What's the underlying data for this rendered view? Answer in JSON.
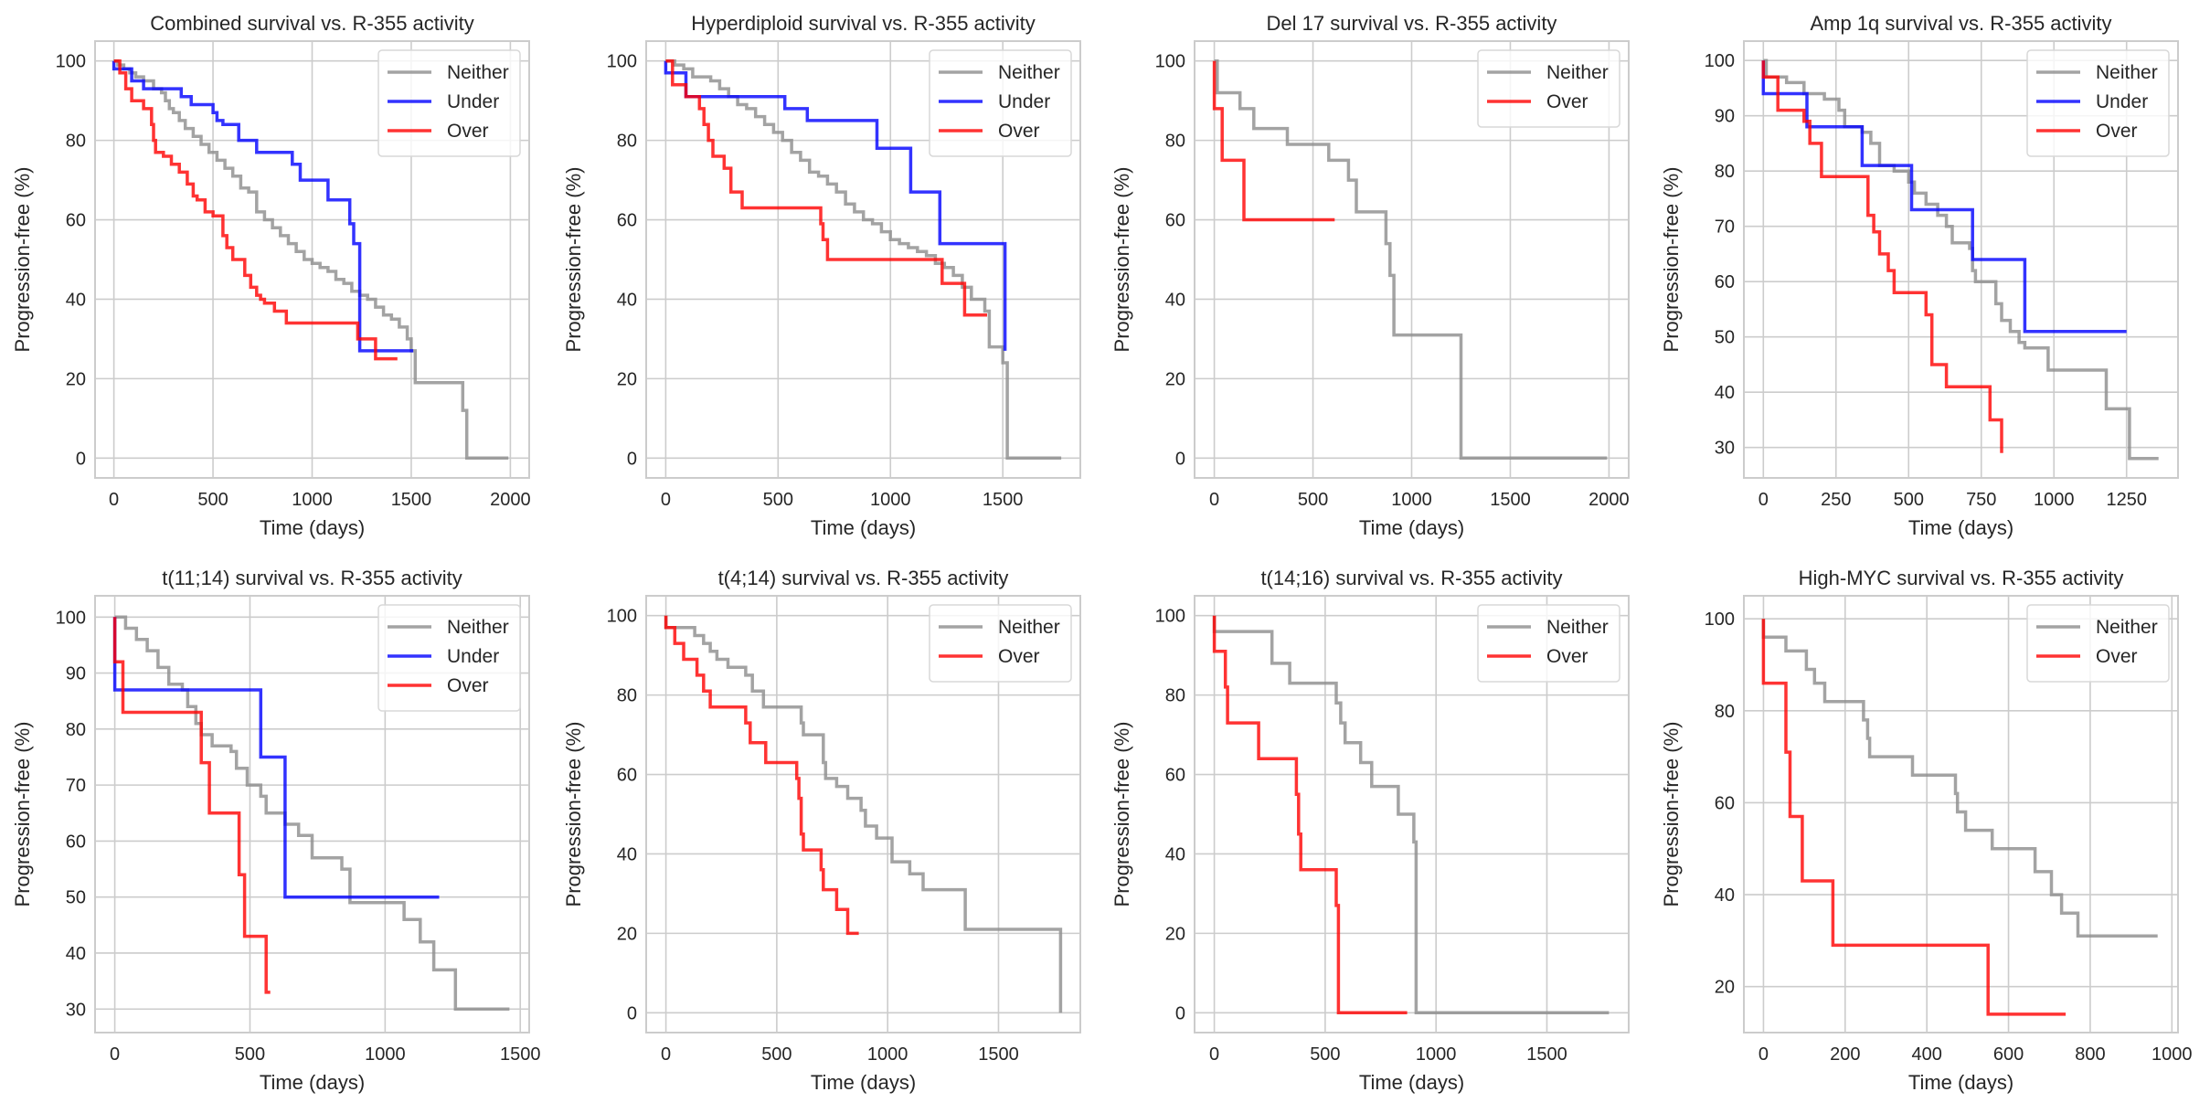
{
  "colors": {
    "Neither": "#8c8c8c",
    "Under": "#0000ff",
    "Over": "#ff0000",
    "grid": "#cccccc",
    "frame": "#cccccc"
  },
  "chart_data": [
    {
      "type": "line",
      "title": "Combined survival vs. R-355 activity",
      "xlabel": "Time (days)",
      "ylabel": "Progression-free (%)",
      "xlim": [
        -95,
        2095
      ],
      "ylim": [
        -5,
        105
      ],
      "xticks": [
        0,
        500,
        1000,
        1500,
        2000
      ],
      "yticks": [
        0,
        20,
        40,
        60,
        80,
        100
      ],
      "grid": true,
      "legend": "top-right",
      "series": [
        {
          "name": "Neither",
          "x": [
            0,
            20,
            50,
            80,
            110,
            150,
            200,
            240,
            260,
            280,
            300,
            330,
            360,
            400,
            440,
            480,
            520,
            560,
            600,
            640,
            680,
            720,
            760,
            800,
            840,
            880,
            920,
            960,
            1000,
            1040,
            1080,
            1120,
            1160,
            1200,
            1240,
            1280,
            1320,
            1360,
            1400,
            1440,
            1480,
            1500,
            1520,
            1760,
            1780,
            1990
          ],
          "y": [
            100,
            99,
            98,
            97,
            96,
            95,
            93,
            92,
            90,
            88,
            87,
            85,
            83,
            81,
            79,
            77,
            75,
            73,
            71,
            68,
            67,
            62,
            60,
            58,
            56,
            54,
            52,
            50,
            49,
            48,
            47,
            45,
            44,
            42,
            41,
            40,
            38,
            36,
            35,
            33,
            30,
            27,
            19,
            12,
            0,
            0
          ]
        },
        {
          "name": "Under",
          "x": [
            0,
            90,
            150,
            340,
            390,
            500,
            520,
            550,
            630,
            720,
            900,
            940,
            1080,
            1190,
            1210,
            1240,
            1510
          ],
          "y": [
            98,
            95,
            93,
            91,
            89,
            87,
            85,
            84,
            80,
            77,
            74,
            70,
            65,
            59,
            54,
            27,
            27
          ]
        },
        {
          "name": "Over",
          "x": [
            0,
            30,
            60,
            90,
            150,
            190,
            200,
            210,
            250,
            290,
            330,
            370,
            400,
            420,
            460,
            500,
            550,
            570,
            600,
            620,
            660,
            690,
            720,
            740,
            760,
            810,
            870,
            1230,
            1320,
            1430
          ],
          "y": [
            100,
            97,
            93,
            90,
            88,
            84,
            80,
            77,
            76,
            74,
            72,
            69,
            66,
            65,
            62,
            61,
            56,
            53,
            50,
            50,
            46,
            43,
            41,
            40,
            39,
            37,
            34,
            30,
            25,
            25
          ]
        }
      ]
    },
    {
      "type": "line",
      "title": "Hyperdiploid survival vs. R-355 activity",
      "xlabel": "Time (days)",
      "ylabel": "Progression-free (%)",
      "xlim": [
        -87,
        1845
      ],
      "ylim": [
        -5,
        105
      ],
      "xticks": [
        0,
        500,
        1000,
        1500
      ],
      "yticks": [
        0,
        20,
        40,
        60,
        80,
        100
      ],
      "grid": true,
      "legend": "top-right",
      "series": [
        {
          "name": "Neither",
          "x": [
            0,
            40,
            80,
            120,
            200,
            240,
            280,
            320,
            360,
            400,
            440,
            480,
            520,
            560,
            600,
            640,
            680,
            720,
            760,
            800,
            840,
            880,
            920,
            960,
            1000,
            1040,
            1080,
            1120,
            1160,
            1200,
            1240,
            1280,
            1320,
            1360,
            1420,
            1440,
            1500,
            1520,
            1760
          ],
          "y": [
            100,
            99,
            98,
            96,
            95,
            93,
            91,
            89,
            88,
            86,
            84,
            82,
            80,
            77,
            75,
            72,
            71,
            69,
            67,
            64,
            62,
            60,
            59,
            57,
            55,
            54,
            53,
            52,
            51,
            49,
            48,
            46,
            43,
            40,
            37,
            28,
            24,
            0,
            0
          ]
        },
        {
          "name": "Under",
          "x": [
            0,
            90,
            390,
            530,
            630,
            940,
            1090,
            1220,
            1510
          ],
          "y": [
            97,
            91,
            91,
            88,
            85,
            78,
            67,
            54,
            27
          ]
        },
        {
          "name": "Over",
          "x": [
            0,
            30,
            90,
            150,
            170,
            190,
            210,
            260,
            290,
            340,
            690,
            700,
            720,
            1230,
            1330,
            1430
          ],
          "y": [
            100,
            94,
            91,
            88,
            84,
            80,
            76,
            73,
            67,
            63,
            59,
            55,
            50,
            44,
            36,
            36
          ]
        }
      ]
    },
    {
      "type": "line",
      "title": "Del 17 survival vs. R-355 activity",
      "xlabel": "Time (days)",
      "ylabel": "Progression-free (%)",
      "xlim": [
        -100,
        2100
      ],
      "ylim": [
        -5,
        105
      ],
      "xticks": [
        0,
        500,
        1000,
        1500,
        2000
      ],
      "yticks": [
        0,
        20,
        40,
        60,
        80,
        100
      ],
      "grid": true,
      "legend": "top-right",
      "series": [
        {
          "name": "Neither",
          "x": [
            0,
            15,
            130,
            200,
            370,
            580,
            680,
            720,
            870,
            890,
            910,
            1250,
            1990
          ],
          "y": [
            100,
            92,
            88,
            83,
            79,
            75,
            70,
            62,
            54,
            46,
            31,
            0,
            0
          ]
        },
        {
          "name": "Over",
          "x": [
            0,
            40,
            150,
            610
          ],
          "y": [
            88,
            75,
            60,
            60
          ]
        }
      ]
    },
    {
      "type": "line",
      "title": "Amp 1q survival vs. R-355 activity",
      "xlabel": "Time (days)",
      "ylabel": "Progression-free (%)",
      "xlim": [
        -67,
        1427
      ],
      "ylim": [
        24.5,
        103.5
      ],
      "xticks": [
        0,
        250,
        500,
        750,
        1000,
        1250
      ],
      "yticks": [
        30,
        40,
        50,
        60,
        70,
        80,
        90,
        100
      ],
      "grid": true,
      "legend": "top-right",
      "series": [
        {
          "name": "Neither",
          "x": [
            0,
            10,
            80,
            140,
            160,
            210,
            260,
            280,
            340,
            370,
            400,
            450,
            500,
            520,
            560,
            600,
            630,
            650,
            710,
            720,
            730,
            800,
            820,
            850,
            880,
            900,
            980,
            1180,
            1260,
            1360
          ],
          "y": [
            100,
            97,
            96,
            94,
            94,
            93,
            91,
            88,
            87,
            85,
            81,
            80,
            78,
            76,
            74,
            72,
            70,
            67,
            66,
            62,
            60,
            56,
            53,
            51,
            49,
            48,
            44,
            37,
            28,
            28
          ]
        },
        {
          "name": "Under",
          "x": [
            0,
            150,
            340,
            510,
            720,
            900,
            1250
          ],
          "y": [
            94,
            88,
            81,
            73,
            64,
            51,
            51
          ]
        },
        {
          "name": "Over",
          "x": [
            0,
            50,
            140,
            160,
            200,
            360,
            380,
            400,
            430,
            450,
            560,
            580,
            630,
            780,
            820
          ],
          "y": [
            97,
            91,
            89,
            85,
            79,
            72,
            69,
            65,
            62,
            58,
            54,
            45,
            41,
            35,
            29
          ]
        }
      ]
    },
    {
      "type": "line",
      "title": "t(11;14) survival vs. R-355 activity",
      "xlabel": "Time (days)",
      "ylabel": "Progression-free (%)",
      "xlim": [
        -73,
        1533
      ],
      "ylim": [
        25.8,
        103.8
      ],
      "xticks": [
        0,
        500,
        1000,
        1500
      ],
      "yticks": [
        30,
        40,
        50,
        60,
        70,
        80,
        90,
        100
      ],
      "grid": true,
      "legend": "top-right",
      "series": [
        {
          "name": "Neither",
          "x": [
            0,
            40,
            80,
            120,
            160,
            200,
            250,
            270,
            300,
            320,
            360,
            430,
            450,
            490,
            540,
            560,
            630,
            680,
            730,
            840,
            870,
            1070,
            1130,
            1180,
            1260,
            1460
          ],
          "y": [
            100,
            98,
            96,
            94,
            91,
            88,
            87,
            84,
            81,
            79,
            77,
            76,
            73,
            70,
            68,
            65,
            63,
            61,
            57,
            55,
            49,
            46,
            42,
            37,
            30,
            30
          ]
        },
        {
          "name": "Under",
          "x": [
            0,
            540,
            630,
            1200
          ],
          "y": [
            87,
            75,
            50,
            50
          ]
        },
        {
          "name": "Over",
          "x": [
            0,
            30,
            320,
            350,
            460,
            480,
            560,
            575
          ],
          "y": [
            92,
            83,
            74,
            65,
            54,
            43,
            33,
            33
          ]
        }
      ]
    },
    {
      "type": "line",
      "title": "t(4;14) survival vs. R-355 activity",
      "xlabel": "Time (days)",
      "ylabel": "Progression-free (%)",
      "xlim": [
        -89,
        1869
      ],
      "ylim": [
        -5,
        105
      ],
      "xticks": [
        0,
        500,
        1000,
        1500
      ],
      "yticks": [
        0,
        20,
        40,
        60,
        80,
        100
      ],
      "grid": true,
      "legend": "top-right",
      "series": [
        {
          "name": "Neither",
          "x": [
            0,
            130,
            170,
            200,
            230,
            280,
            360,
            390,
            440,
            610,
            620,
            710,
            720,
            770,
            820,
            880,
            900,
            950,
            1020,
            1100,
            1160,
            1350,
            1780
          ],
          "y": [
            97,
            95,
            93,
            91,
            89,
            87,
            85,
            81,
            77,
            73,
            70,
            63,
            59,
            57,
            54,
            51,
            47,
            44,
            38,
            35,
            31,
            21,
            0
          ]
        },
        {
          "name": "Over",
          "x": [
            0,
            40,
            80,
            140,
            170,
            200,
            360,
            380,
            450,
            590,
            600,
            610,
            620,
            700,
            710,
            770,
            820,
            870
          ],
          "y": [
            97,
            93,
            89,
            85,
            81,
            77,
            73,
            68,
            63,
            59,
            54,
            45,
            41,
            36,
            31,
            26,
            20,
            20
          ]
        }
      ]
    },
    {
      "type": "line",
      "title": "t(14;16) survival vs. R-355 activity",
      "xlabel": "Time (days)",
      "ylabel": "Progression-free (%)",
      "xlim": [
        -89,
        1869
      ],
      "ylim": [
        -5,
        105
      ],
      "xticks": [
        0,
        500,
        1000,
        1500
      ],
      "yticks": [
        0,
        20,
        40,
        60,
        80,
        100
      ],
      "grid": true,
      "legend": "top-right",
      "series": [
        {
          "name": "Neither",
          "x": [
            0,
            260,
            340,
            550,
            570,
            590,
            660,
            710,
            830,
            900,
            910,
            1780
          ],
          "y": [
            96,
            88,
            83,
            78,
            73,
            68,
            63,
            57,
            50,
            43,
            0,
            0
          ]
        },
        {
          "name": "Over",
          "x": [
            0,
            50,
            60,
            200,
            370,
            380,
            390,
            550,
            560,
            870
          ],
          "y": [
            91,
            82,
            73,
            64,
            55,
            45,
            36,
            27,
            0,
            0
          ]
        }
      ]
    },
    {
      "type": "line",
      "title": "High-MYC survival vs. R-355 activity",
      "xlabel": "Time (days)",
      "ylabel": "Progression-free (%)",
      "xlim": [
        -48,
        1015
      ],
      "ylim": [
        10,
        105
      ],
      "xticks": [
        0,
        200,
        400,
        600,
        800,
        1000
      ],
      "yticks": [
        20,
        40,
        60,
        80,
        100
      ],
      "grid": true,
      "legend": "top-right",
      "series": [
        {
          "name": "Neither",
          "x": [
            0,
            55,
            105,
            125,
            150,
            245,
            255,
            260,
            365,
            470,
            475,
            495,
            560,
            665,
            705,
            730,
            770,
            965
          ],
          "y": [
            96,
            93,
            89,
            86,
            82,
            78,
            74,
            70,
            66,
            62,
            58,
            54,
            50,
            45,
            40,
            36,
            31,
            31
          ]
        },
        {
          "name": "Over",
          "x": [
            0,
            55,
            65,
            95,
            170,
            550,
            740
          ],
          "y": [
            86,
            71,
            57,
            43,
            29,
            14,
            14
          ]
        }
      ]
    }
  ]
}
